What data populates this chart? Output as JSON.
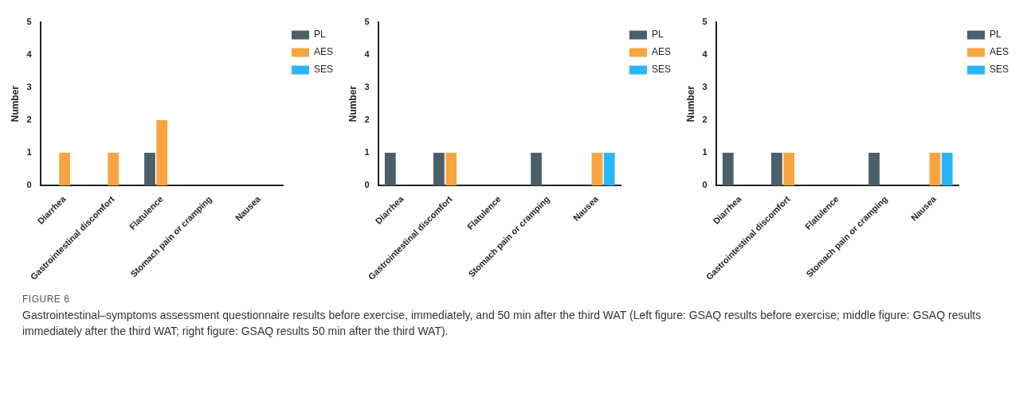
{
  "chart_data": [
    {
      "type": "bar",
      "ylabel": "Number",
      "categories": [
        "Diarrhea",
        "Gastrointestinal discomfort",
        "Flatulence",
        "Stomach pain or cramping",
        "Nausea"
      ],
      "ylim": [
        0,
        5
      ],
      "yticks": [
        0,
        1,
        2,
        3,
        4,
        5
      ],
      "grid": false,
      "legend": "top right",
      "series": [
        {
          "name": "PL",
          "color": "#4a5f6a",
          "values": [
            0,
            0,
            1,
            0,
            0
          ]
        },
        {
          "name": "AES",
          "color": "#f7a541",
          "values": [
            1,
            1,
            2,
            0,
            0
          ]
        },
        {
          "name": "SES",
          "color": "#29b6f6",
          "values": [
            0,
            0,
            0,
            0,
            0
          ]
        }
      ]
    },
    {
      "type": "bar",
      "ylabel": "Number",
      "categories": [
        "Diarrhea",
        "Gastrointestinal discomfort",
        "Flatulence",
        "Stomach pain or cramping",
        "Nausea"
      ],
      "ylim": [
        0,
        5
      ],
      "yticks": [
        0,
        1,
        2,
        3,
        4,
        5
      ],
      "grid": false,
      "legend": "top right",
      "series": [
        {
          "name": "PL",
          "color": "#4a5f6a",
          "values": [
            1,
            1,
            0,
            1,
            0
          ]
        },
        {
          "name": "AES",
          "color": "#f7a541",
          "values": [
            0,
            1,
            0,
            0,
            1
          ]
        },
        {
          "name": "SES",
          "color": "#29b6f6",
          "values": [
            0,
            0,
            0,
            0,
            1
          ]
        }
      ]
    },
    {
      "type": "bar",
      "ylabel": "Number",
      "categories": [
        "Diarrhea",
        "Gastrointestinal discomfort",
        "Flatulence",
        "Stomach pain or cramping",
        "Nausea"
      ],
      "ylim": [
        0,
        5
      ],
      "yticks": [
        0,
        1,
        2,
        3,
        4,
        5
      ],
      "grid": false,
      "legend": "top right",
      "series": [
        {
          "name": "PL",
          "color": "#4a5f6a",
          "values": [
            1,
            1,
            0,
            1,
            0
          ]
        },
        {
          "name": "AES",
          "color": "#f7a541",
          "values": [
            0,
            1,
            0,
            0,
            1
          ]
        },
        {
          "name": "SES",
          "color": "#29b6f6",
          "values": [
            0,
            0,
            0,
            0,
            1
          ]
        }
      ],
      "annotations": [
        "FIGURE 6",
        "Gastrointestinal–symptoms assessment questionnaire results before exercise, immediately, and 50 min after the third WAT (Left figure: GSAQ results before exercise; middle figure: GSAQ results immediately after the third WAT; right figure: GSAQ results 50 min after the third WAT)."
      ]
    }
  ]
}
